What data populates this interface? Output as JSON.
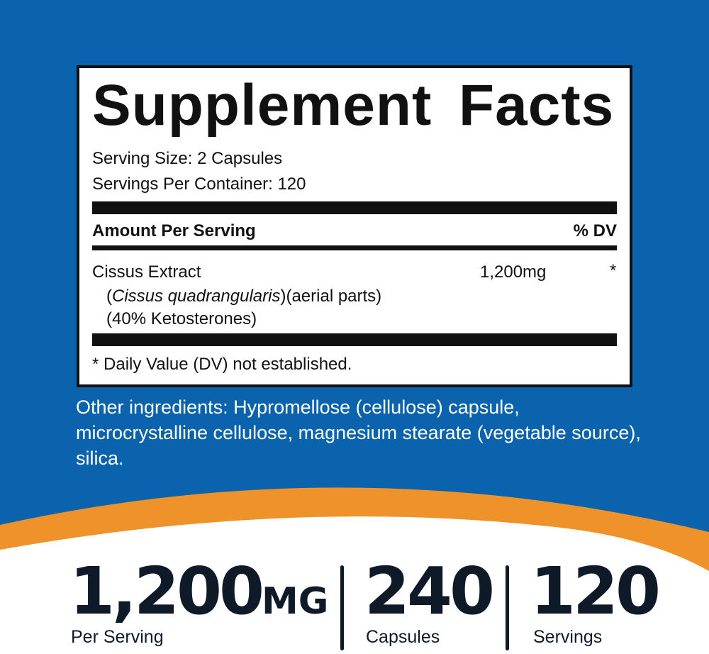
{
  "colors": {
    "background_blue": "#0b63ae",
    "accent_orange": "#f0922a",
    "text_dark": "#0f1a28"
  },
  "facts": {
    "title": "Supplement Facts",
    "serving_size": "Serving Size: 2 Capsules",
    "servings_per_container": "Servings Per Container: 120",
    "amount_header": "Amount Per Serving",
    "dv_header": "% DV",
    "ingredient": {
      "name": "Cissus Extract",
      "latin": "Cissus quadrangularis",
      "paren_open": "(",
      "paren_close": ")",
      "part": "(aerial parts)",
      "standardization": "(40% Ketosterones)",
      "amount": "1,200mg",
      "dv": "*"
    },
    "footnote": "* Daily Value (DV) not established."
  },
  "other_ingredients": "Other ingredients: Hypromellose (cellulose) capsule, microcrystalline cellulose, magnesium stearate (vegetable source), silica.",
  "stats": [
    {
      "value": "1,200",
      "unit": "MG",
      "label": "Per Serving"
    },
    {
      "value": "240",
      "label": "Capsules"
    },
    {
      "value": "120",
      "label": "Servings"
    }
  ]
}
